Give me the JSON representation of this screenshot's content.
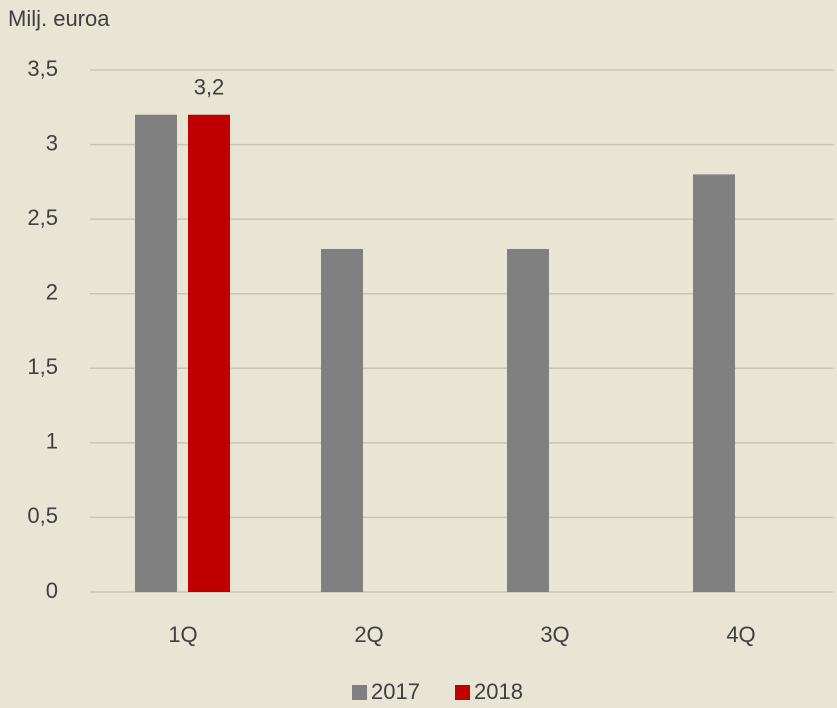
{
  "chart_data": {
    "type": "bar",
    "y_label": "Milj. euroa",
    "categories": [
      "1Q",
      "2Q",
      "3Q",
      "4Q"
    ],
    "series": [
      {
        "name": "2017",
        "color": "#808080",
        "values": [
          3.2,
          2.3,
          2.3,
          2.8
        ]
      },
      {
        "name": "2018",
        "color": "#c00000",
        "values": [
          3.2,
          null,
          null,
          null
        ],
        "value_labels": [
          "3,2",
          null,
          null,
          null
        ]
      }
    ],
    "ylim": [
      0,
      3.5
    ],
    "yticks": [
      0,
      {
        "value": 0.5,
        "label": "0,5"
      },
      1,
      {
        "value": 1.5,
        "label": "1,5"
      },
      2,
      {
        "value": 2.5,
        "label": "2,5"
      },
      3,
      {
        "value": 3.5,
        "label": "3,5"
      }
    ],
    "grid": true,
    "legend": "bottom"
  }
}
